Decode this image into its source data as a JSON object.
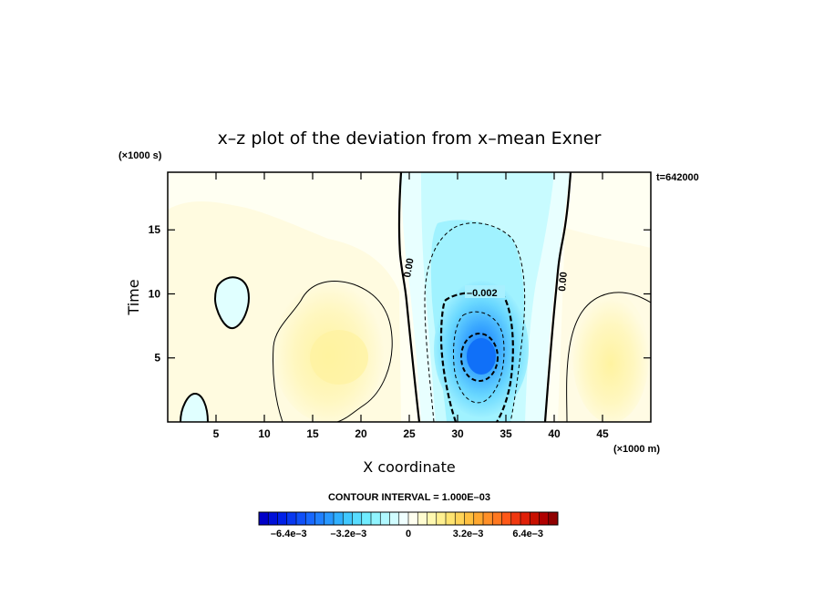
{
  "chart_data": {
    "type": "heatmap",
    "title": "x–z plot of the deviation from x–mean Exner",
    "xlabel": "X coordinate",
    "ylabel": "Time",
    "x_unit": "(×1000 m)",
    "y_unit": "(×1000 s)",
    "time_label": "t=642000",
    "xlim": [
      0,
      50
    ],
    "ylim": [
      0,
      19.5
    ],
    "x_ticks": [
      5,
      10,
      15,
      20,
      25,
      30,
      35,
      40,
      45
    ],
    "y_ticks": [
      5,
      10,
      15
    ],
    "contour_interval_text": "CONTOUR INTERVAL = 1.000E–03",
    "contour_labels": [
      "0.00",
      "–0.002",
      "0.00"
    ],
    "colorbar": {
      "min": -0.008,
      "max": 0.008,
      "tick_labels": [
        "–6.4e–3",
        "–3.2e–3",
        "0",
        "3.2e–3",
        "6.4e–3"
      ],
      "tick_values": [
        -0.0064,
        -0.0032,
        0,
        0.0032,
        0.0064
      ],
      "colors": [
        "#0000c8",
        "#0010d8",
        "#0020e8",
        "#0838f0",
        "#1050f8",
        "#1868ff",
        "#2080ff",
        "#2898ff",
        "#30b0ff",
        "#40c8ff",
        "#58dcff",
        "#70ecff",
        "#90f4ff",
        "#b0f8ff",
        "#d0fcff",
        "#f0ffff",
        "#fffff0",
        "#fffcd0",
        "#fff8b0",
        "#fff090",
        "#ffe470",
        "#ffd458",
        "#ffc040",
        "#ffa830",
        "#ff9028",
        "#ff7820",
        "#ff5818",
        "#f03810",
        "#e02008",
        "#c81000",
        "#b00000",
        "#900000"
      ]
    },
    "features": [
      {
        "kind": "negative_max",
        "x": 32.3,
        "y": 5.3,
        "value": -0.0053
      },
      {
        "kind": "positive_blob",
        "x": 18,
        "y": 6,
        "value": 0.0012
      },
      {
        "kind": "positive_blob",
        "x": 45.5,
        "y": 5.5,
        "value": 0.0009
      },
      {
        "kind": "negative_blob",
        "x": 6.8,
        "y": 10.3,
        "value": -0.0003
      },
      {
        "kind": "negative_blob",
        "x": 2.5,
        "y": 1,
        "value": -0.0003
      }
    ]
  }
}
